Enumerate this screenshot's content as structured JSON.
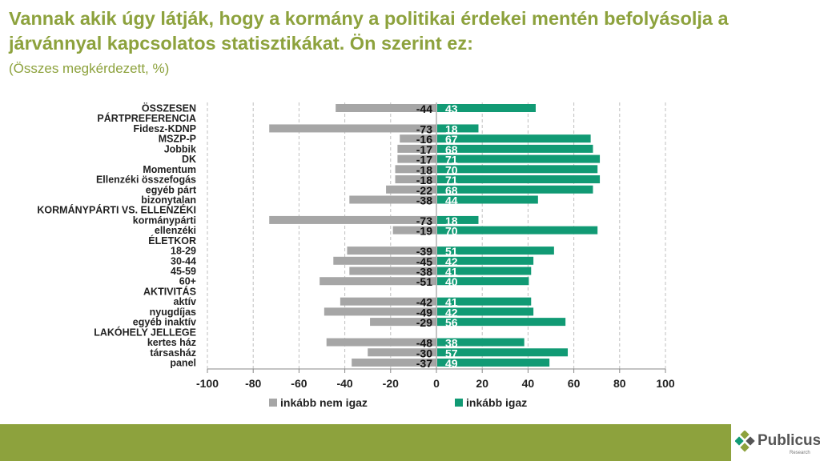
{
  "title": "Vannak akik úgy látják, hogy a kormány a politikai érdekei mentén befolyásolja a járvánnyal kapcsolatos statisztikákat. Ön szerint ez:",
  "subtitle": "(Összes megkérdezett, %)",
  "logo": {
    "name": "Publicus",
    "sub": "Research"
  },
  "colors": {
    "neg": "#a6a6a6",
    "pos": "#119a74",
    "accent": "#8da23d"
  },
  "chart_data": {
    "type": "bar",
    "orientation": "horizontal-diverging",
    "categories": [
      "ÖSSZESEN",
      "PÁRTPREFERENCIA",
      "Fidesz-KDNP",
      "MSZP-P",
      "Jobbik",
      "DK",
      "Momentum",
      "Ellenzéki összefogás",
      "egyéb párt",
      "bizonytalan",
      "KORMÁNYPÁRTI VS. ELLENZÉKI",
      "kormánypárti",
      "ellenzéki",
      "ÉLETKOR",
      "18-29",
      "30-44",
      "45-59",
      "60+",
      "AKTIVITÁS",
      "aktív",
      "nyugdíjas",
      "egyéb inaktív",
      "LAKÓHELY JELLEGE",
      "kertes ház",
      "társasház",
      "panel"
    ],
    "series": [
      {
        "name": "inkább nem igaz",
        "values": [
          -44,
          null,
          -73,
          -16,
          -17,
          -17,
          -18,
          -18,
          -22,
          -38,
          null,
          -73,
          -19,
          null,
          -39,
          -45,
          -38,
          -51,
          null,
          -42,
          -49,
          -29,
          null,
          -48,
          -30,
          -37
        ]
      },
      {
        "name": "inkább igaz",
        "values": [
          43,
          null,
          18,
          67,
          68,
          71,
          70,
          71,
          68,
          44,
          null,
          18,
          70,
          null,
          51,
          42,
          41,
          40,
          null,
          41,
          42,
          56,
          null,
          38,
          57,
          49
        ]
      }
    ],
    "xlim": [
      -100,
      100
    ],
    "xticks": [
      "-100",
      "-80",
      "-60",
      "-40",
      "-20",
      "0",
      "20",
      "40",
      "60",
      "80",
      "100"
    ],
    "legend": "bottom",
    "grid": true
  }
}
